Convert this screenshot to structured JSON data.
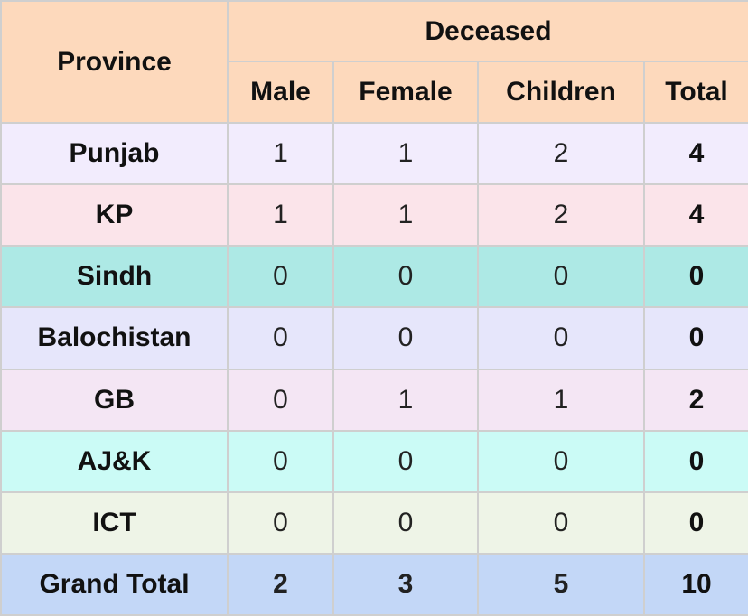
{
  "table": {
    "headers": {
      "province": "Province",
      "group": "Deceased",
      "columns": [
        "Male",
        "Female",
        "Children",
        "Total"
      ]
    },
    "header_color": "#fdd9bc",
    "rows": [
      {
        "province": "Punjab",
        "male": "1",
        "female": "1",
        "children": "2",
        "total": "4",
        "color": "#f2ecfd"
      },
      {
        "province": "KP",
        "male": "1",
        "female": "1",
        "children": "2",
        "total": "4",
        "color": "#fbe4ea"
      },
      {
        "province": "Sindh",
        "male": "0",
        "female": "0",
        "children": "0",
        "total": "0",
        "color": "#ade9e5"
      },
      {
        "province": "Balochistan",
        "male": "0",
        "female": "0",
        "children": "0",
        "total": "0",
        "color": "#e6e6fb"
      },
      {
        "province": "GB",
        "male": "0",
        "female": "1",
        "children": "1",
        "total": "2",
        "color": "#f4e6f4"
      },
      {
        "province": "AJ&K",
        "male": "0",
        "female": "0",
        "children": "0",
        "total": "0",
        "color": "#cbfbf6"
      },
      {
        "province": "ICT",
        "male": "0",
        "female": "0",
        "children": "0",
        "total": "0",
        "color": "#eef4e7"
      },
      {
        "province": "Grand Total",
        "male": "2",
        "female": "3",
        "children": "5",
        "total": "10",
        "color": "#c3d7f7",
        "bold": true
      }
    ]
  }
}
